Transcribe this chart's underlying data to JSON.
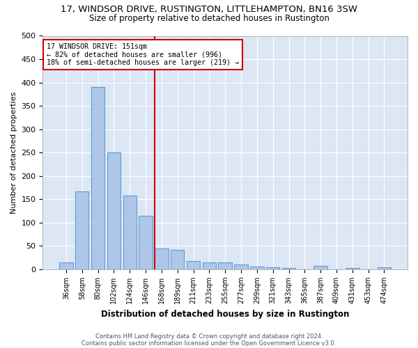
{
  "title": "17, WINDSOR DRIVE, RUSTINGTON, LITTLEHAMPTON, BN16 3SW",
  "subtitle": "Size of property relative to detached houses in Rustington",
  "xlabel": "Distribution of detached houses by size in Rustington",
  "ylabel": "Number of detached properties",
  "bin_labels": [
    "36sqm",
    "58sqm",
    "80sqm",
    "102sqm",
    "124sqm",
    "146sqm",
    "168sqm",
    "189sqm",
    "211sqm",
    "233sqm",
    "255sqm",
    "277sqm",
    "299sqm",
    "321sqm",
    "343sqm",
    "365sqm",
    "387sqm",
    "409sqm",
    "431sqm",
    "453sqm",
    "474sqm"
  ],
  "bar_heights": [
    15,
    167,
    390,
    250,
    158,
    115,
    45,
    42,
    18,
    15,
    15,
    10,
    6,
    5,
    3,
    0,
    7,
    0,
    3,
    0,
    5
  ],
  "bar_color": "#aec6e8",
  "bar_edge_color": "#5a9fd4",
  "red_line_index": 6,
  "annotation_line1": "17 WINDSOR DRIVE: 151sqm",
  "annotation_line2": "← 82% of detached houses are smaller (996)",
  "annotation_line3": "18% of semi-detached houses are larger (219) →",
  "annotation_box_color": "#ffffff",
  "annotation_box_edge": "#cc0000",
  "fig_background_color": "#ffffff",
  "plot_background_color": "#dce6f5",
  "grid_color": "#ffffff",
  "footer1": "Contains HM Land Registry data © Crown copyright and database right 2024.",
  "footer2": "Contains public sector information licensed under the Open Government Licence v3.0.",
  "ylim": [
    0,
    500
  ],
  "yticks": [
    0,
    50,
    100,
    150,
    200,
    250,
    300,
    350,
    400,
    450,
    500
  ]
}
